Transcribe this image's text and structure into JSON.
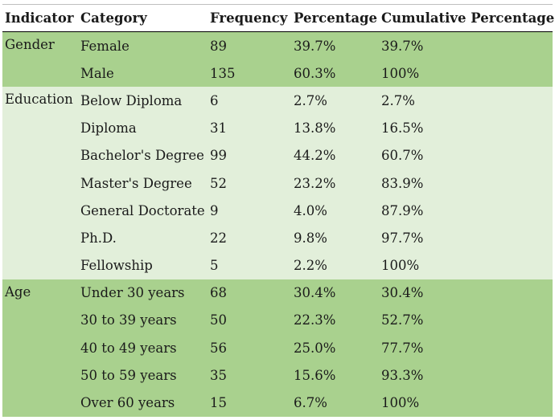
{
  "headers": [
    "Indicator",
    "Category",
    "Frequency",
    "Percentage",
    "Cumulative Percentage"
  ],
  "groups": [
    {
      "indicator": "Gender",
      "rows": [
        [
          "Female",
          "89",
          "39.7%",
          "39.7%"
        ],
        [
          "Male",
          "135",
          "60.3%",
          "100%"
        ]
      ]
    },
    {
      "indicator": "Education",
      "rows": [
        [
          "Below Diploma",
          "6",
          "2.7%",
          "2.7%"
        ],
        [
          "Diploma",
          "31",
          "13.8%",
          "16.5%"
        ],
        [
          "Bachelor's Degree",
          "99",
          "44.2%",
          "60.7%"
        ],
        [
          "Master's Degree",
          "52",
          "23.2%",
          "83.9%"
        ],
        [
          "General Doctorate",
          "9",
          "4.0%",
          "87.9%"
        ],
        [
          "Ph.D.",
          "22",
          "9.8%",
          "97.7%"
        ],
        [
          "Fellowship",
          "5",
          "2.2%",
          "100%"
        ]
      ]
    },
    {
      "indicator": "Age",
      "rows": [
        [
          "Under 30 years",
          "68",
          "30.4%",
          "30.4%"
        ],
        [
          "30 to 39 years",
          "50",
          "22.3%",
          "52.7%"
        ],
        [
          "40 to 49 years",
          "56",
          "25.0%",
          "77.7%"
        ],
        [
          "50 to 59 years",
          "35",
          "15.6%",
          "93.3%"
        ],
        [
          "Over 60 years",
          "15",
          "6.7%",
          "100%"
        ]
      ]
    }
  ],
  "colors": {
    "dark_band": "#a9d18e",
    "light_band": "#e2efda"
  }
}
